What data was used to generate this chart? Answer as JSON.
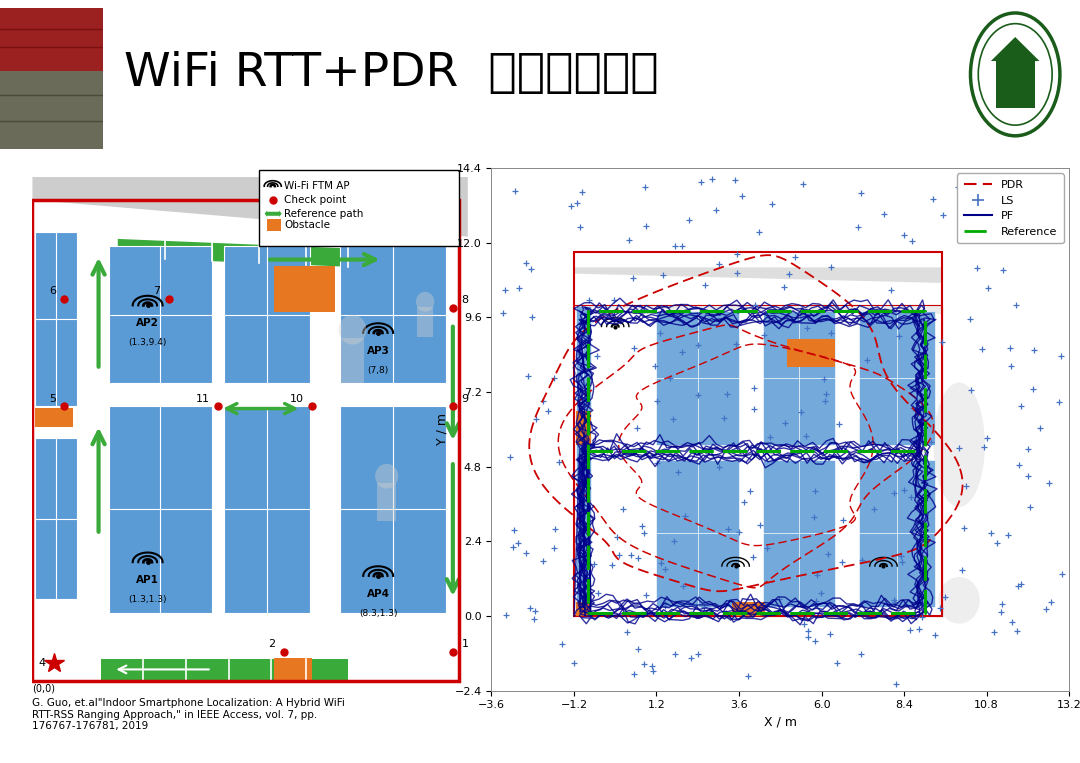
{
  "title": "WiFi RTT+PDR  二维定位精度",
  "title_fontsize": 34,
  "orange_line_color": "#e87722",
  "ref_text": "G. Guo, et.al\"Indoor Smartphone Localization: A Hybrid WiFi\nRTT-RSS Ranging Approach,\" in IEEE Access, vol. 7, pp.\n176767-176781, 2019",
  "floor_plan": {
    "blue_color": "#5b9bd5",
    "orange_color": "#e87722",
    "green_color": "#3aaa3a",
    "red_color": "#cc0000",
    "gray_color": "#c8c8c8"
  },
  "scatter_plot": {
    "xlim": [
      -3.6,
      13.2
    ],
    "ylim": [
      -2.4,
      14.4
    ],
    "xticks": [
      -3.6,
      -1.2,
      1.2,
      3.6,
      6.0,
      8.4,
      10.8,
      13.2
    ],
    "yticks": [
      -2.4,
      0.0,
      2.4,
      4.8,
      7.2,
      9.6,
      12.0,
      14.4
    ],
    "xlabel": "X / m",
    "ylabel": "Y / m",
    "ls_color": "#4472c4",
    "pdr_color": "#cc0000",
    "pf_color": "#00008b",
    "ref_color": "#00aa00"
  }
}
